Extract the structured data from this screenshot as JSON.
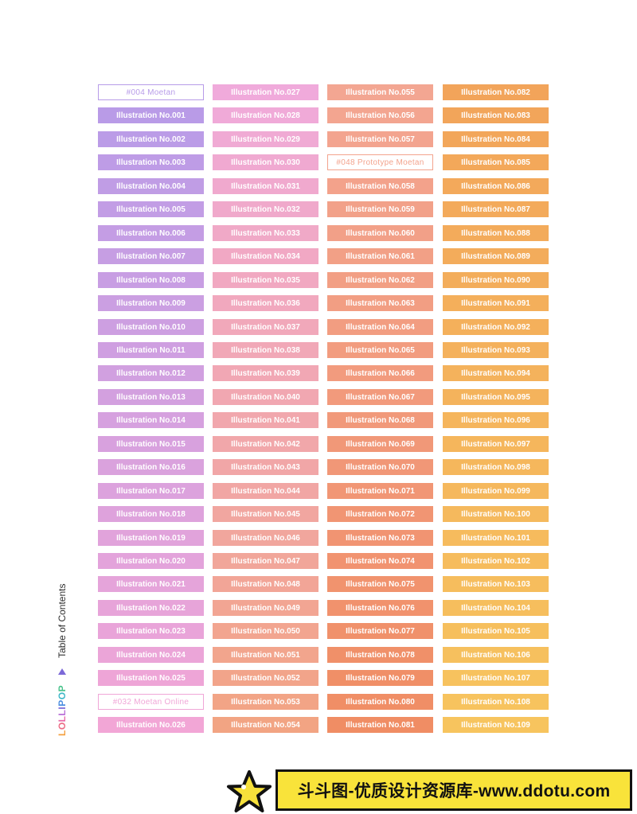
{
  "toc": {
    "entries": [
      [
        "#004 Moetan",
        "Illustration No.001",
        "Illustration No.002",
        "Illustration No.003",
        "Illustration No.004",
        "Illustration No.005",
        "Illustration No.006",
        "Illustration No.007",
        "Illustration No.008",
        "Illustration No.009",
        "Illustration No.010",
        "Illustration No.011",
        "Illustration No.012",
        "Illustration No.013",
        "Illustration No.014",
        "Illustration No.015",
        "Illustration No.016",
        "Illustration No.017",
        "Illustration No.018",
        "Illustration No.019",
        "Illustration No.020",
        "Illustration No.021",
        "Illustration No.022",
        "Illustration No.023",
        "Illustration No.024",
        "Illustration No.025",
        "#032 Moetan Online",
        "Illustration No.026"
      ],
      [
        "Illustration No.027",
        "Illustration No.028",
        "Illustration No.029",
        "Illustration No.030",
        "Illustration No.031",
        "Illustration No.032",
        "Illustration No.033",
        "Illustration No.034",
        "Illustration No.035",
        "Illustration No.036",
        "Illustration No.037",
        "Illustration No.038",
        "Illustration No.039",
        "Illustration No.040",
        "Illustration No.041",
        "Illustration No.042",
        "Illustration No.043",
        "Illustration No.044",
        "Illustration No.045",
        "Illustration No.046",
        "Illustration No.047",
        "Illustration No.048",
        "Illustration No.049",
        "Illustration No.050",
        "Illustration No.051",
        "Illustration No.052",
        "Illustration No.053",
        "Illustration No.054"
      ],
      [
        "Illustration No.055",
        "Illustration No.056",
        "Illustration No.057",
        "#048 Prototype Moetan",
        "Illustration No.058",
        "Illustration No.059",
        "Illustration No.060",
        "Illustration No.061",
        "Illustration No.062",
        "Illustration No.063",
        "Illustration No.064",
        "Illustration No.065",
        "Illustration No.066",
        "Illustration No.067",
        "Illustration No.068",
        "Illustration No.069",
        "Illustration No.070",
        "Illustration No.071",
        "Illustration No.072",
        "Illustration No.073",
        "Illustration No.074",
        "Illustration No.075",
        "Illustration No.076",
        "Illustration No.077",
        "Illustration No.078",
        "Illustration No.079",
        "Illustration No.080",
        "Illustration No.081"
      ],
      [
        "Illustration No.082",
        "Illustration No.083",
        "Illustration No.084",
        "Illustration No.085",
        "Illustration No.086",
        "Illustration No.087",
        "Illustration No.088",
        "Illustration No.089",
        "Illustration No.090",
        "Illustration No.091",
        "Illustration No.092",
        "Illustration No.093",
        "Illustration No.094",
        "Illustration No.095",
        "Illustration No.096",
        "Illustration No.097",
        "Illustration No.098",
        "Illustration No.099",
        "Illustration No.100",
        "Illustration No.101",
        "Illustration No.102",
        "Illustration No.103",
        "Illustration No.104",
        "Illustration No.105",
        "Illustration No.106",
        "Illustration No.107",
        "Illustration No.108",
        "Illustration No.109"
      ]
    ],
    "column_colors": [
      [
        "#b79be8",
        "#f2a6d6"
      ],
      [
        "#f0aadb",
        "#f2a483"
      ],
      [
        "#f3a692",
        "#f08d64"
      ],
      [
        "#f2a45a",
        "#f7c45e"
      ]
    ]
  },
  "sidebar": {
    "brand_letters": [
      "L",
      "O",
      "L",
      "L",
      "I",
      "P",
      "O",
      "P"
    ],
    "brand_colors": [
      "#f4a03f",
      "#ec6d86",
      "#e96aa9",
      "#b86fd8",
      "#7c69d8",
      "#4d8fe0",
      "#3fb8c8",
      "#49c38b"
    ],
    "marker_icon": "triangle-icon",
    "label": "Table of Contents"
  },
  "watermark": {
    "icon": "star-icon",
    "text": "斗斗图-优质设计资源库-www.ddotu.com"
  }
}
